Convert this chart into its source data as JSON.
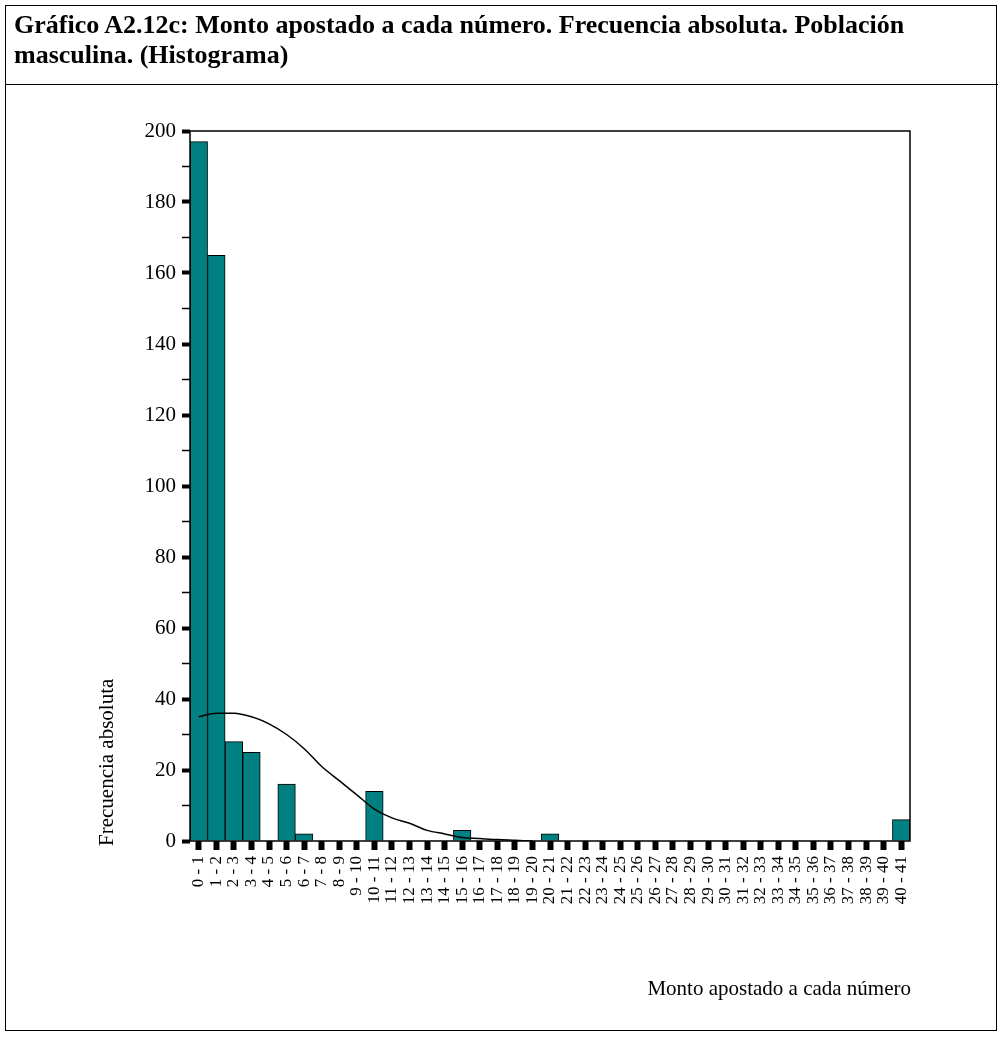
{
  "chart_data": {
    "type": "bar",
    "title": "Gráfico A2.12c: Monto apostado a cada número. Frecuencia absoluta. Población masculina. (Histograma)",
    "xlabel": "Monto apostado a cada número",
    "ylabel": "Frecuencia absoluta",
    "categories": [
      "0 - 1",
      "1 - 2",
      "2 - 3",
      "3 - 4",
      "4 - 5",
      "5 - 6",
      "6 - 7",
      "7 - 8",
      "8 - 9",
      "9 - 10",
      "10 - 11",
      "11 - 12",
      "12 - 13",
      "13 - 14",
      "14 - 15",
      "15 - 16",
      "16 - 17",
      "17 - 18",
      "18 - 19",
      "19 - 20",
      "20 - 21",
      "21 - 22",
      "22 - 23",
      "23 - 24",
      "24 - 25",
      "25 - 26",
      "26 - 27",
      "27 - 28",
      "28 - 29",
      "29 - 30",
      "30 - 31",
      "31 - 32",
      "32 - 33",
      "33 - 34",
      "34 - 35",
      "35 - 36",
      "36 - 37",
      "37 - 38",
      "38 - 39",
      "39 - 40",
      "40 - 41"
    ],
    "series": [
      {
        "color": "#008080",
        "values": [
          197,
          165,
          28,
          25,
          0,
          16,
          2,
          0,
          0,
          0,
          14,
          0,
          0,
          0,
          0,
          3,
          0,
          0,
          0,
          0,
          2,
          0,
          0,
          0,
          0,
          0,
          0,
          0,
          0,
          0,
          0,
          0,
          0,
          0,
          0,
          0,
          0,
          0,
          0,
          0,
          6
        ]
      },
      {
        "type": "line",
        "color": "#000000",
        "values": [
          35,
          36,
          36,
          35,
          33,
          30,
          26,
          21,
          17,
          13,
          9,
          6.5,
          5,
          3,
          2,
          1,
          0.7,
          0.4,
          0.2,
          0,
          null,
          null,
          null,
          null,
          null,
          null,
          null,
          null,
          null,
          null,
          null,
          null,
          null,
          null,
          null,
          null,
          null,
          null,
          null,
          null,
          null
        ]
      }
    ],
    "ylim": [
      0,
      200
    ],
    "yticks": [
      0,
      {
        "value": 10,
        "label": null
      },
      20,
      {
        "value": 30,
        "label": null
      },
      40,
      {
        "value": 50,
        "label": null
      },
      60,
      {
        "value": 70,
        "label": null
      },
      80,
      {
        "value": 90,
        "label": null
      },
      100,
      {
        "value": 110,
        "label": null
      },
      120,
      {
        "value": 130,
        "label": null
      },
      140,
      {
        "value": 150,
        "label": null
      },
      160,
      {
        "value": 170,
        "label": null
      },
      180,
      {
        "value": 190,
        "label": null
      },
      200
    ],
    "grid": false,
    "legend": false
  }
}
